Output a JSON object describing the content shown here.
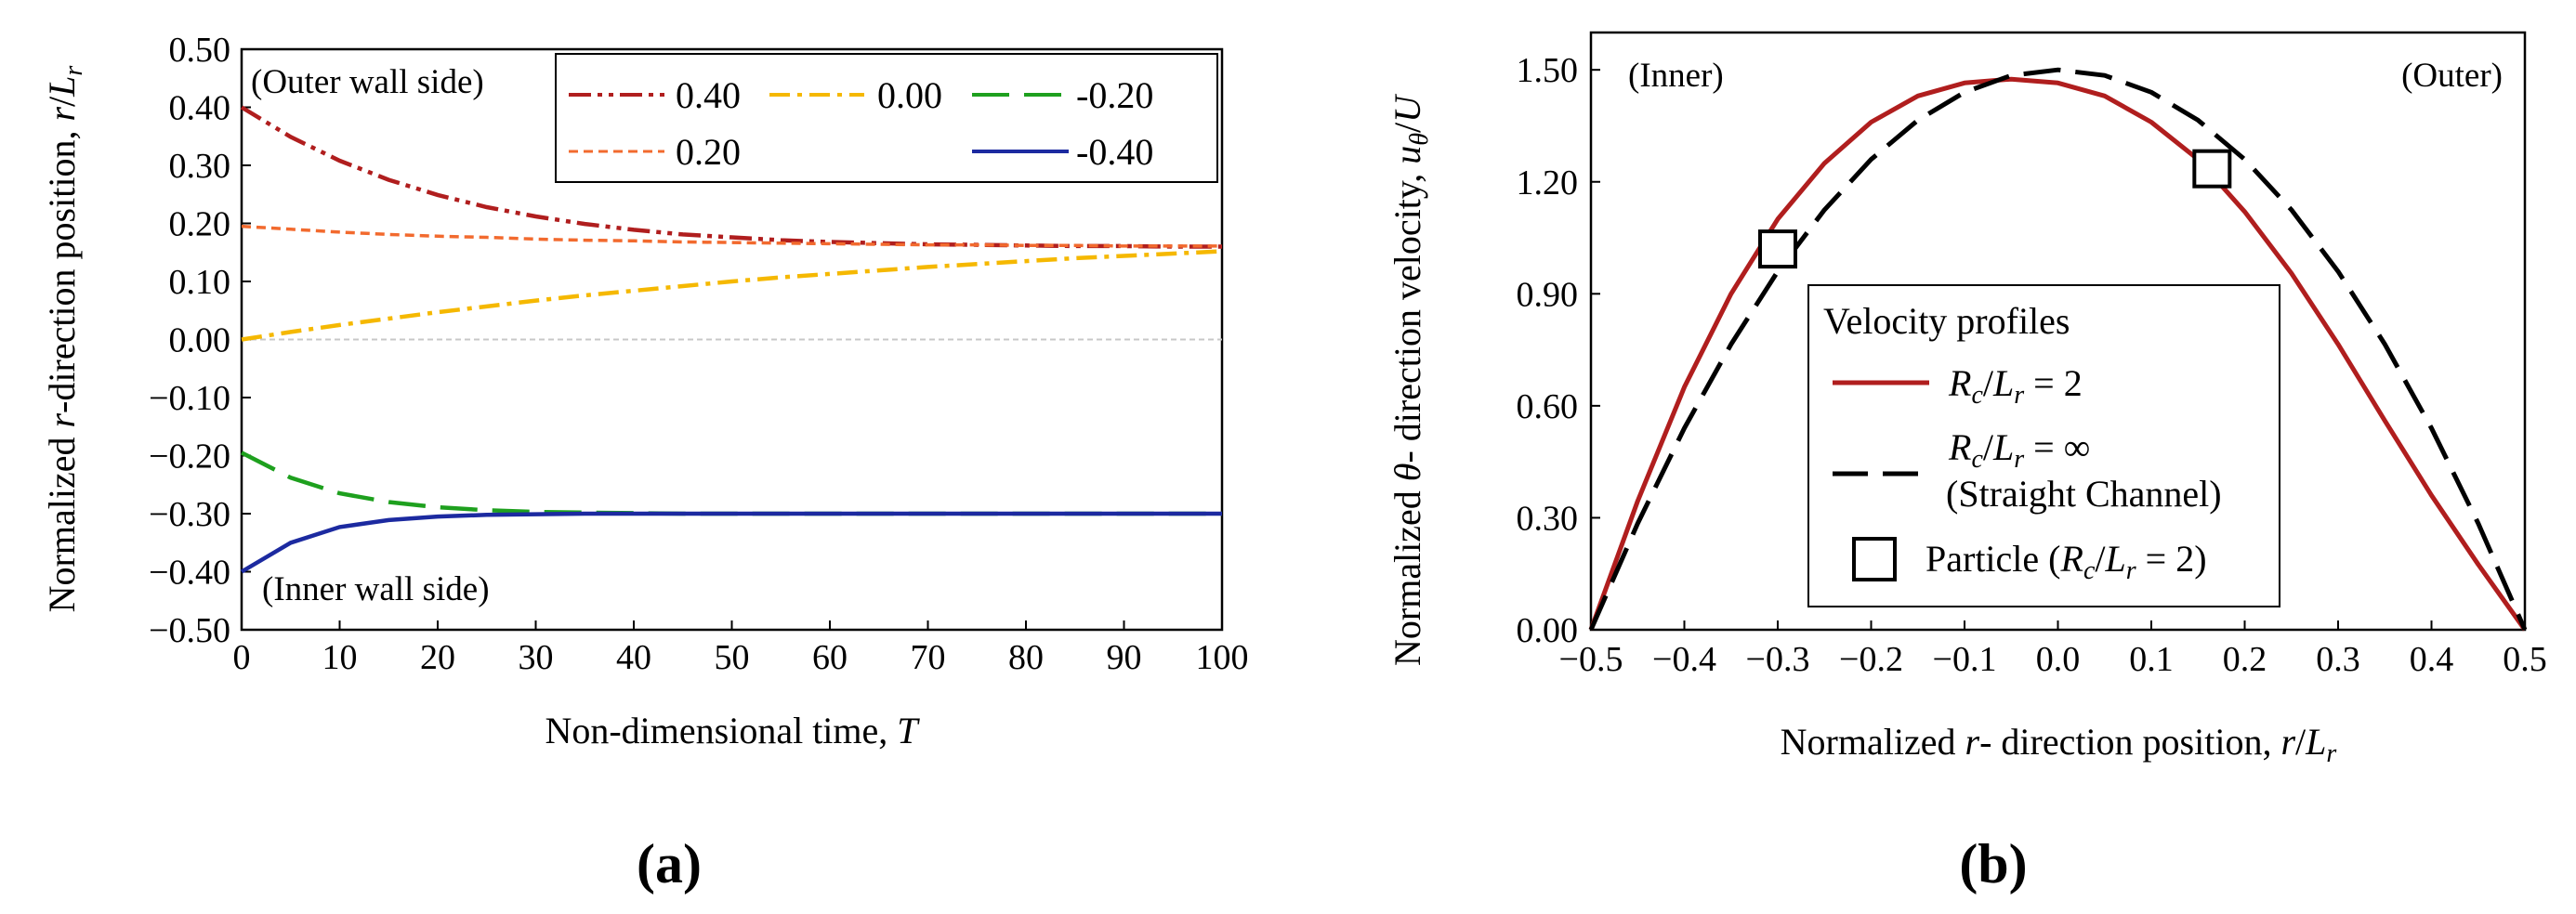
{
  "chart_data": [
    {
      "type": "line",
      "panel": "(a)",
      "xlabel": "Non-dimensional time, T",
      "ylabel": "Normalized r-direction position, r/L_r",
      "xlim": [
        0,
        100
      ],
      "ylim": [
        -0.5,
        0.5
      ],
      "xticks": [
        "0",
        "10",
        "20",
        "30",
        "40",
        "50",
        "60",
        "70",
        "80",
        "90",
        "100"
      ],
      "yticks": [
        "0.50",
        "0.40",
        "0.30",
        "0.20",
        "0.10",
        "0.00",
        "-0.10",
        "-0.20",
        "-0.30",
        "-0.40",
        "-0.50"
      ],
      "annotations": {
        "outer": "(Outer wall side)",
        "inner": "(Inner wall side)"
      },
      "legend_position": "top-right",
      "x": [
        0,
        5,
        10,
        15,
        20,
        25,
        30,
        35,
        40,
        45,
        50,
        55,
        60,
        65,
        70,
        75,
        80,
        85,
        90,
        95,
        100
      ],
      "series": [
        {
          "name": "0.40",
          "color": "#b01e1e",
          "dash": "dashdotdot",
          "values": [
            0.4,
            0.349,
            0.308,
            0.275,
            0.249,
            0.228,
            0.212,
            0.199,
            0.189,
            0.181,
            0.176,
            0.171,
            0.168,
            0.166,
            0.164,
            0.163,
            0.162,
            0.161,
            0.161,
            0.16,
            0.16
          ]
        },
        {
          "name": "0.20",
          "color": "#f26a2e",
          "dash": "shortdash",
          "values": [
            0.195,
            0.19,
            0.185,
            0.181,
            0.178,
            0.176,
            0.173,
            0.171,
            0.17,
            0.168,
            0.167,
            0.166,
            0.165,
            0.164,
            0.163,
            0.163,
            0.162,
            0.162,
            0.161,
            0.161,
            0.161
          ]
        },
        {
          "name": "0.00",
          "color": "#f5b800",
          "dash": "dashdot",
          "values": [
            0.0,
            0.013,
            0.025,
            0.036,
            0.047,
            0.057,
            0.067,
            0.076,
            0.084,
            0.092,
            0.1,
            0.107,
            0.113,
            0.119,
            0.125,
            0.13,
            0.135,
            0.14,
            0.144,
            0.148,
            0.152
          ]
        },
        {
          "name": "-0.20",
          "color": "#1ea01e",
          "dash": "longdash",
          "values": [
            -0.195,
            -0.238,
            -0.265,
            -0.28,
            -0.289,
            -0.294,
            -0.297,
            -0.298,
            -0.299,
            -0.3,
            -0.3,
            -0.3,
            -0.3,
            -0.3,
            -0.3,
            -0.3,
            -0.3,
            -0.3,
            -0.3,
            -0.3,
            -0.3
          ]
        },
        {
          "name": "-0.40",
          "color": "#1c2aa0",
          "dash": "solid",
          "values": [
            -0.4,
            -0.35,
            -0.323,
            -0.311,
            -0.305,
            -0.302,
            -0.301,
            -0.3,
            -0.3,
            -0.3,
            -0.3,
            -0.3,
            -0.3,
            -0.3,
            -0.3,
            -0.3,
            -0.3,
            -0.3,
            -0.3,
            -0.3,
            -0.3
          ]
        }
      ]
    },
    {
      "type": "line",
      "panel": "(b)",
      "xlabel": "Normalized r- direction position, r/L_r",
      "ylabel": "Normalized θ- direction velocity, u_θ/U",
      "xlim": [
        -0.5,
        0.5
      ],
      "ylim": [
        0,
        1.6
      ],
      "xticks": [
        "−0.5",
        "−0.4",
        "−0.3",
        "−0.2",
        "−0.1",
        "0.0",
        "0.1",
        "0.2",
        "0.3",
        "0.4",
        "0.5"
      ],
      "yticks": [
        "1.50",
        "1.20",
        "0.90",
        "0.60",
        "0.30",
        "0.00"
      ],
      "annotations": {
        "inner": "(Inner)",
        "outer": "(Outer)"
      },
      "legend_title": "Velocity profiles",
      "legend_position": "lower-center",
      "x": [
        -0.5,
        -0.45,
        -0.4,
        -0.35,
        -0.3,
        -0.25,
        -0.2,
        -0.15,
        -0.1,
        -0.05,
        0.0,
        0.05,
        0.1,
        0.15,
        0.2,
        0.25,
        0.3,
        0.35,
        0.4,
        0.45,
        0.5
      ],
      "series": [
        {
          "name": "R_c/L_r = 2",
          "color": "#b01e1e",
          "dash": "solid",
          "values": [
            0.0,
            0.345,
            0.65,
            0.9,
            1.1,
            1.25,
            1.36,
            1.43,
            1.465,
            1.475,
            1.465,
            1.43,
            1.36,
            1.26,
            1.12,
            0.955,
            0.765,
            0.56,
            0.36,
            0.175,
            0.0
          ]
        },
        {
          "name": "R_c/L_r = ∞",
          "note": "(Straight Channel)",
          "color": "#000000",
          "dash": "longdash",
          "values": [
            0.0,
            0.285,
            0.54,
            0.765,
            0.96,
            1.125,
            1.26,
            1.365,
            1.44,
            1.485,
            1.5,
            1.485,
            1.44,
            1.365,
            1.26,
            1.125,
            0.96,
            0.765,
            0.54,
            0.285,
            0.0
          ]
        }
      ],
      "particles": {
        "name": "Particle (R_c/L_r = 2)",
        "points": [
          {
            "x": -0.3,
            "y": 1.02
          },
          {
            "x": 0.165,
            "y": 1.235
          }
        ]
      }
    }
  ]
}
